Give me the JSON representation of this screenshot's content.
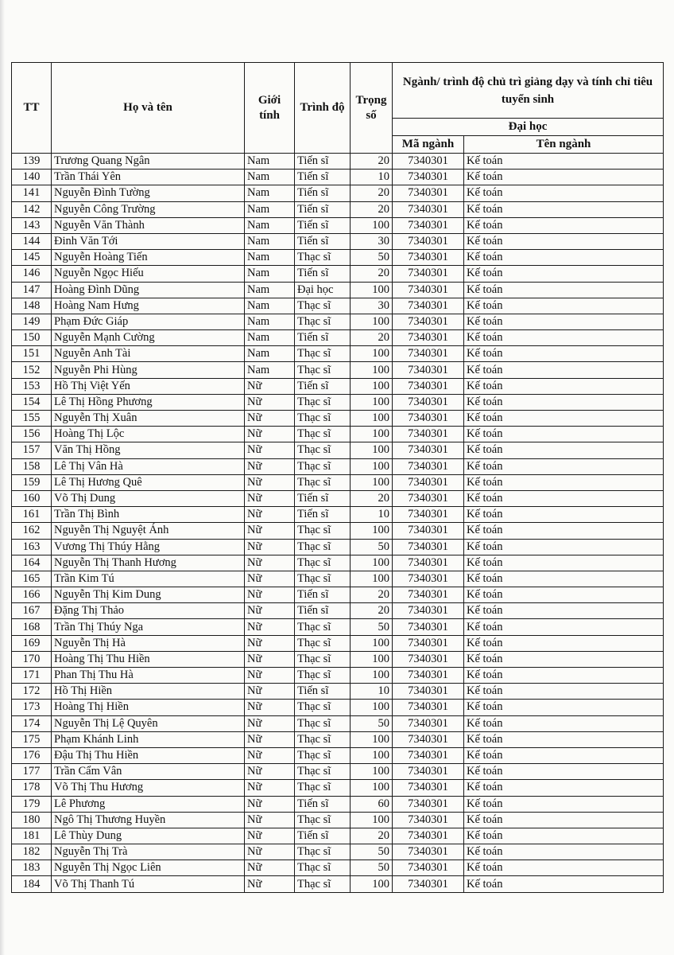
{
  "header": {
    "tt": "TT",
    "name": "Họ và tên",
    "gender": "Giới tính",
    "level": "Trình độ",
    "weight": "Trọng số",
    "group": "Ngành/ trình độ chủ trì giảng dạy và tính chỉ tiêu tuyển sinh",
    "subgroup": "Đại học",
    "code": "Mã ngành",
    "major": "Tên ngành"
  },
  "rows": [
    [
      "139",
      "Trương Quang Ngân",
      "Nam",
      "Tiến sĩ",
      "20",
      "7340301",
      "Kế toán"
    ],
    [
      "140",
      "Trần Thái Yên",
      "Nam",
      "Tiến sĩ",
      "10",
      "7340301",
      "Kế toán"
    ],
    [
      "141",
      "Nguyễn Đình Tường",
      "Nam",
      "Tiến sĩ",
      "20",
      "7340301",
      "Kế toán"
    ],
    [
      "142",
      "Nguyễn Công Trường",
      "Nam",
      "Tiến sĩ",
      "20",
      "7340301",
      "Kế toán"
    ],
    [
      "143",
      "Nguyễn Văn Thành",
      "Nam",
      "Tiến sĩ",
      "100",
      "7340301",
      "Kế toán"
    ],
    [
      "144",
      "Đinh Văn Tới",
      "Nam",
      "Tiến sĩ",
      "30",
      "7340301",
      "Kế toán"
    ],
    [
      "145",
      "Nguyễn Hoàng Tiến",
      "Nam",
      "Thạc sĩ",
      "50",
      "7340301",
      "Kế toán"
    ],
    [
      "146",
      "Nguyễn Ngọc Hiếu",
      "Nam",
      "Tiến sĩ",
      "20",
      "7340301",
      "Kế toán"
    ],
    [
      "147",
      "Hoàng Đình Dũng",
      "Nam",
      "Đại học",
      "100",
      "7340301",
      "Kế toán"
    ],
    [
      "148",
      "Hoàng Nam Hưng",
      "Nam",
      "Thạc sĩ",
      "30",
      "7340301",
      "Kế toán"
    ],
    [
      "149",
      "Phạm Đức Giáp",
      "Nam",
      "Thạc sĩ",
      "100",
      "7340301",
      "Kế toán"
    ],
    [
      "150",
      "Nguyễn Mạnh Cường",
      "Nam",
      "Tiến sĩ",
      "20",
      "7340301",
      "Kế toán"
    ],
    [
      "151",
      "Nguyễn Anh Tài",
      "Nam",
      "Thạc sĩ",
      "100",
      "7340301",
      "Kế toán"
    ],
    [
      "152",
      "Nguyễn Phi Hùng",
      "Nam",
      "Thạc sĩ",
      "100",
      "7340301",
      "Kế toán"
    ],
    [
      "153",
      "Hồ Thị Việt Yến",
      "Nữ",
      "Tiến sĩ",
      "100",
      "7340301",
      "Kế toán"
    ],
    [
      "154",
      "Lê Thị Hồng Phương",
      "Nữ",
      "Thạc sĩ",
      "100",
      "7340301",
      "Kế toán"
    ],
    [
      "155",
      "Nguyễn Thị Xuân",
      "Nữ",
      "Thạc sĩ",
      "100",
      "7340301",
      "Kế toán"
    ],
    [
      "156",
      "Hoàng Thị Lộc",
      "Nữ",
      "Thạc sĩ",
      "100",
      "7340301",
      "Kế toán"
    ],
    [
      "157",
      "Văn Thị Hồng",
      "Nữ",
      "Thạc sĩ",
      "100",
      "7340301",
      "Kế toán"
    ],
    [
      "158",
      "Lê Thị Vân Hà",
      "Nữ",
      "Thạc sĩ",
      "100",
      "7340301",
      "Kế toán"
    ],
    [
      "159",
      "Lê Thị Hương Quê",
      "Nữ",
      "Thạc sĩ",
      "100",
      "7340301",
      "Kế toán"
    ],
    [
      "160",
      "Võ Thị Dung",
      "Nữ",
      "Tiến sĩ",
      "20",
      "7340301",
      "Kế toán"
    ],
    [
      "161",
      "Trần Thị Bình",
      "Nữ",
      "Tiến sĩ",
      "10",
      "7340301",
      "Kế toán"
    ],
    [
      "162",
      "Nguyễn Thị Nguyệt Ánh",
      "Nữ",
      "Thạc sĩ",
      "100",
      "7340301",
      "Kế toán"
    ],
    [
      "163",
      "Vương Thị Thúy Hằng",
      "Nữ",
      "Thạc sĩ",
      "50",
      "7340301",
      "Kế toán"
    ],
    [
      "164",
      "Nguyễn Thị Thanh Hương",
      "Nữ",
      "Thạc sĩ",
      "100",
      "7340301",
      "Kế toán"
    ],
    [
      "165",
      "Trần Kim Tú",
      "Nữ",
      "Thạc sĩ",
      "100",
      "7340301",
      "Kế toán"
    ],
    [
      "166",
      "Nguyễn Thị Kim Dung",
      "Nữ",
      "Tiến sĩ",
      "20",
      "7340301",
      "Kế toán"
    ],
    [
      "167",
      "Đặng Thị Thảo",
      "Nữ",
      "Tiến sĩ",
      "20",
      "7340301",
      "Kế toán"
    ],
    [
      "168",
      "Trần Thị Thúy Nga",
      "Nữ",
      "Thạc sĩ",
      "50",
      "7340301",
      "Kế toán"
    ],
    [
      "169",
      "Nguyễn Thị Hà",
      "Nữ",
      "Thạc sĩ",
      "100",
      "7340301",
      "Kế toán"
    ],
    [
      "170",
      "Hoàng Thị Thu Hiền",
      "Nữ",
      "Thạc sĩ",
      "100",
      "7340301",
      "Kế toán"
    ],
    [
      "171",
      "Phan Thị Thu Hà",
      "Nữ",
      "Thạc sĩ",
      "100",
      "7340301",
      "Kế toán"
    ],
    [
      "172",
      "Hồ Thị Hiền",
      "Nữ",
      "Tiến sĩ",
      "10",
      "7340301",
      "Kế toán"
    ],
    [
      "173",
      "Hoàng Thị Hiền",
      "Nữ",
      "Thạc sĩ",
      "100",
      "7340301",
      "Kế toán"
    ],
    [
      "174",
      "Nguyễn Thị Lệ Quyên",
      "Nữ",
      "Thạc sĩ",
      "50",
      "7340301",
      "Kế toán"
    ],
    [
      "175",
      "Phạm Khánh Linh",
      "Nữ",
      "Thạc sĩ",
      "100",
      "7340301",
      "Kế toán"
    ],
    [
      "176",
      "Đậu Thị Thu Hiền",
      "Nữ",
      "Thạc sĩ",
      "100",
      "7340301",
      "Kế toán"
    ],
    [
      "177",
      "Trần Cẩm Vân",
      "Nữ",
      "Thạc sĩ",
      "100",
      "7340301",
      "Kế toán"
    ],
    [
      "178",
      "Võ Thị Thu Hương",
      "Nữ",
      "Thạc sĩ",
      "100",
      "7340301",
      "Kế toán"
    ],
    [
      "179",
      "Lê Phương",
      "Nữ",
      "Tiến sĩ",
      "60",
      "7340301",
      "Kế toán"
    ],
    [
      "180",
      "Ngô Thị Thương Huyền",
      "Nữ",
      "Thạc sĩ",
      "100",
      "7340301",
      "Kế toán"
    ],
    [
      "181",
      "Lê Thùy Dung",
      "Nữ",
      "Tiến sĩ",
      "20",
      "7340301",
      "Kế toán"
    ],
    [
      "182",
      "Nguyễn Thị Trà",
      "Nữ",
      "Thạc sĩ",
      "50",
      "7340301",
      "Kế toán"
    ],
    [
      "183",
      "Nguyễn Thị Ngọc Liên",
      "Nữ",
      "Thạc sĩ",
      "50",
      "7340301",
      "Kế toán"
    ],
    [
      "184",
      "Võ Thị Thanh Tú",
      "Nữ",
      "Thạc sĩ",
      "100",
      "7340301",
      "Kế toán"
    ]
  ]
}
